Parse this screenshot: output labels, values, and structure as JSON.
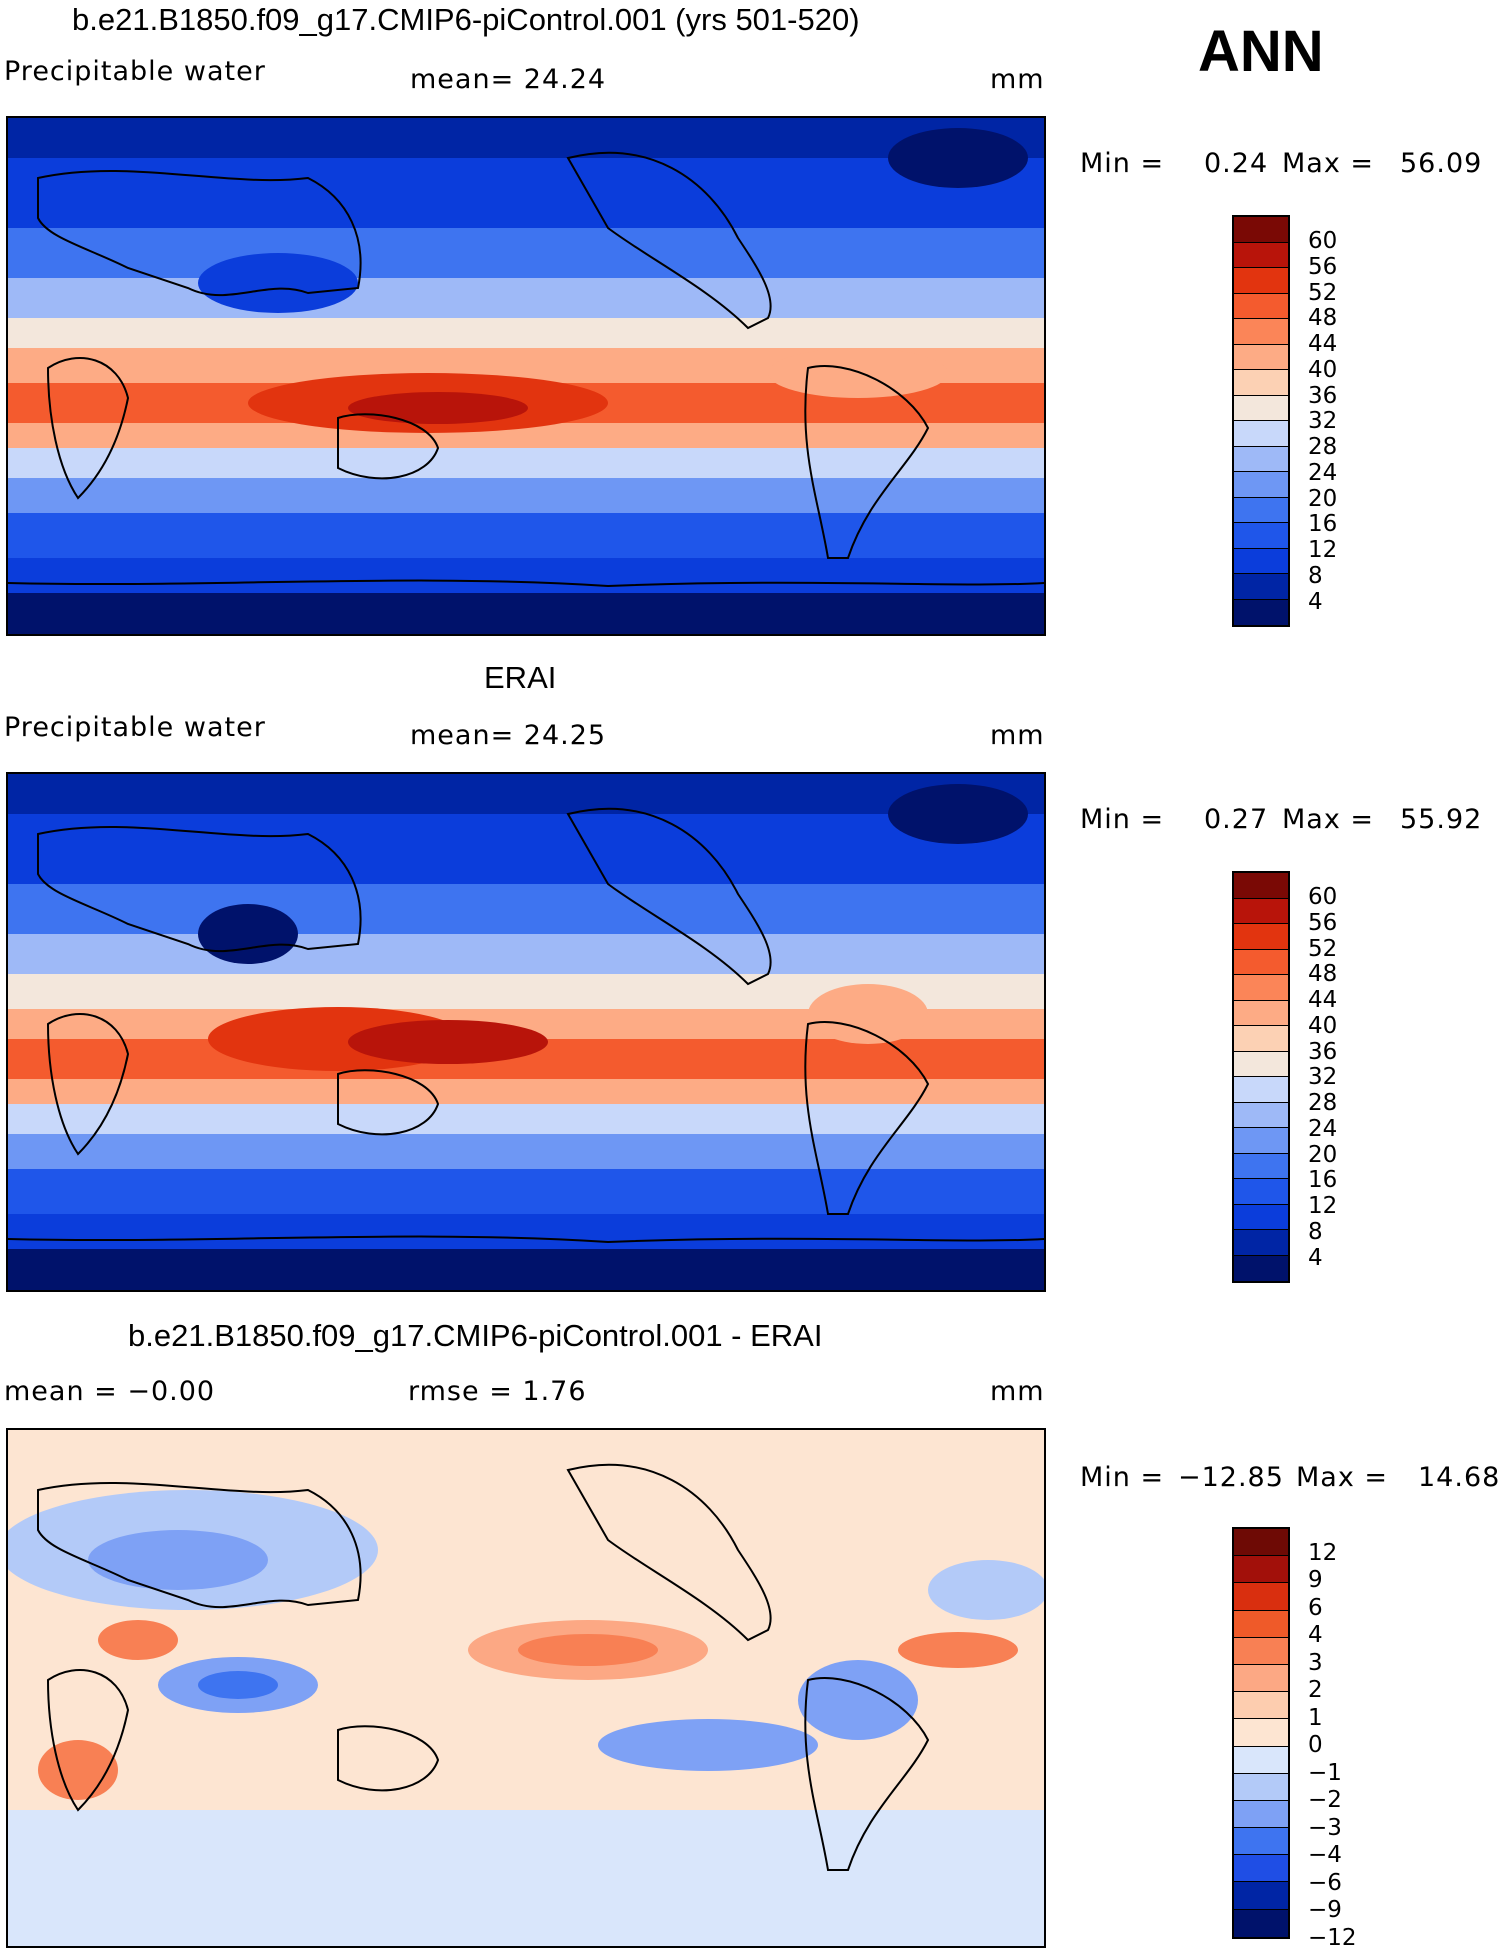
{
  "ann_label": "ANN",
  "palette_mean": [
    "#00126b",
    "#0025a5",
    "#0b3ddb",
    "#1f56ea",
    "#3e74f0",
    "#6e97f4",
    "#9eb9f7",
    "#c8d8fa",
    "#f3e7dc",
    "#fcd1b4",
    "#fdab85",
    "#fb8558",
    "#f45b2e",
    "#e2340f",
    "#b8140a",
    "#7a0905"
  ],
  "palette_diff": [
    "#00126b",
    "#0025a5",
    "#1f4ee5",
    "#3e74f0",
    "#7ea1f5",
    "#b3caf8",
    "#d9e6fb",
    "#fde5d2",
    "#fdcdaf",
    "#fca884",
    "#f88054",
    "#ef5a29",
    "#d92f0f",
    "#a2100a",
    "#6e0a05"
  ],
  "panels": [
    {
      "title": "b.e21.B1850.f09_g17.CMIP6-piControl.001 (yrs 501-520)",
      "left_label": "Precipitable  water",
      "center_label": "mean=   24.24",
      "units": "mm",
      "min_label": "Min  =",
      "min_value": "0.24",
      "max_label": "Max  =",
      "max_value": "56.09",
      "colorbar_ticks": [
        "60",
        "56",
        "52",
        "48",
        "44",
        "40",
        "36",
        "32",
        "28",
        "24",
        "20",
        "16",
        "12",
        "8",
        "4"
      ]
    },
    {
      "title": "ERAI",
      "left_label": "Precipitable  water",
      "center_label": "mean=   24.25",
      "units": "mm",
      "min_label": "Min  =",
      "min_value": "0.27",
      "max_label": "Max  =",
      "max_value": "55.92",
      "colorbar_ticks": [
        "60",
        "56",
        "52",
        "48",
        "44",
        "40",
        "36",
        "32",
        "28",
        "24",
        "20",
        "16",
        "12",
        "8",
        "4"
      ]
    },
    {
      "title": "b.e21.B1850.f09_g17.CMIP6-piControl.001 - ERAI",
      "left_label": "mean  =   −0.00",
      "center_label": "rmse  =     1.76",
      "units": "mm",
      "min_label": "Min  =",
      "min_value": "−12.85",
      "max_label": "Max  =",
      "max_value": "14.68",
      "colorbar_ticks": [
        "12",
        "9",
        "6",
        "4",
        "3",
        "2",
        "1",
        "0",
        "−1",
        "−2",
        "−3",
        "−4",
        "−6",
        "−9",
        "−12"
      ]
    }
  ]
}
